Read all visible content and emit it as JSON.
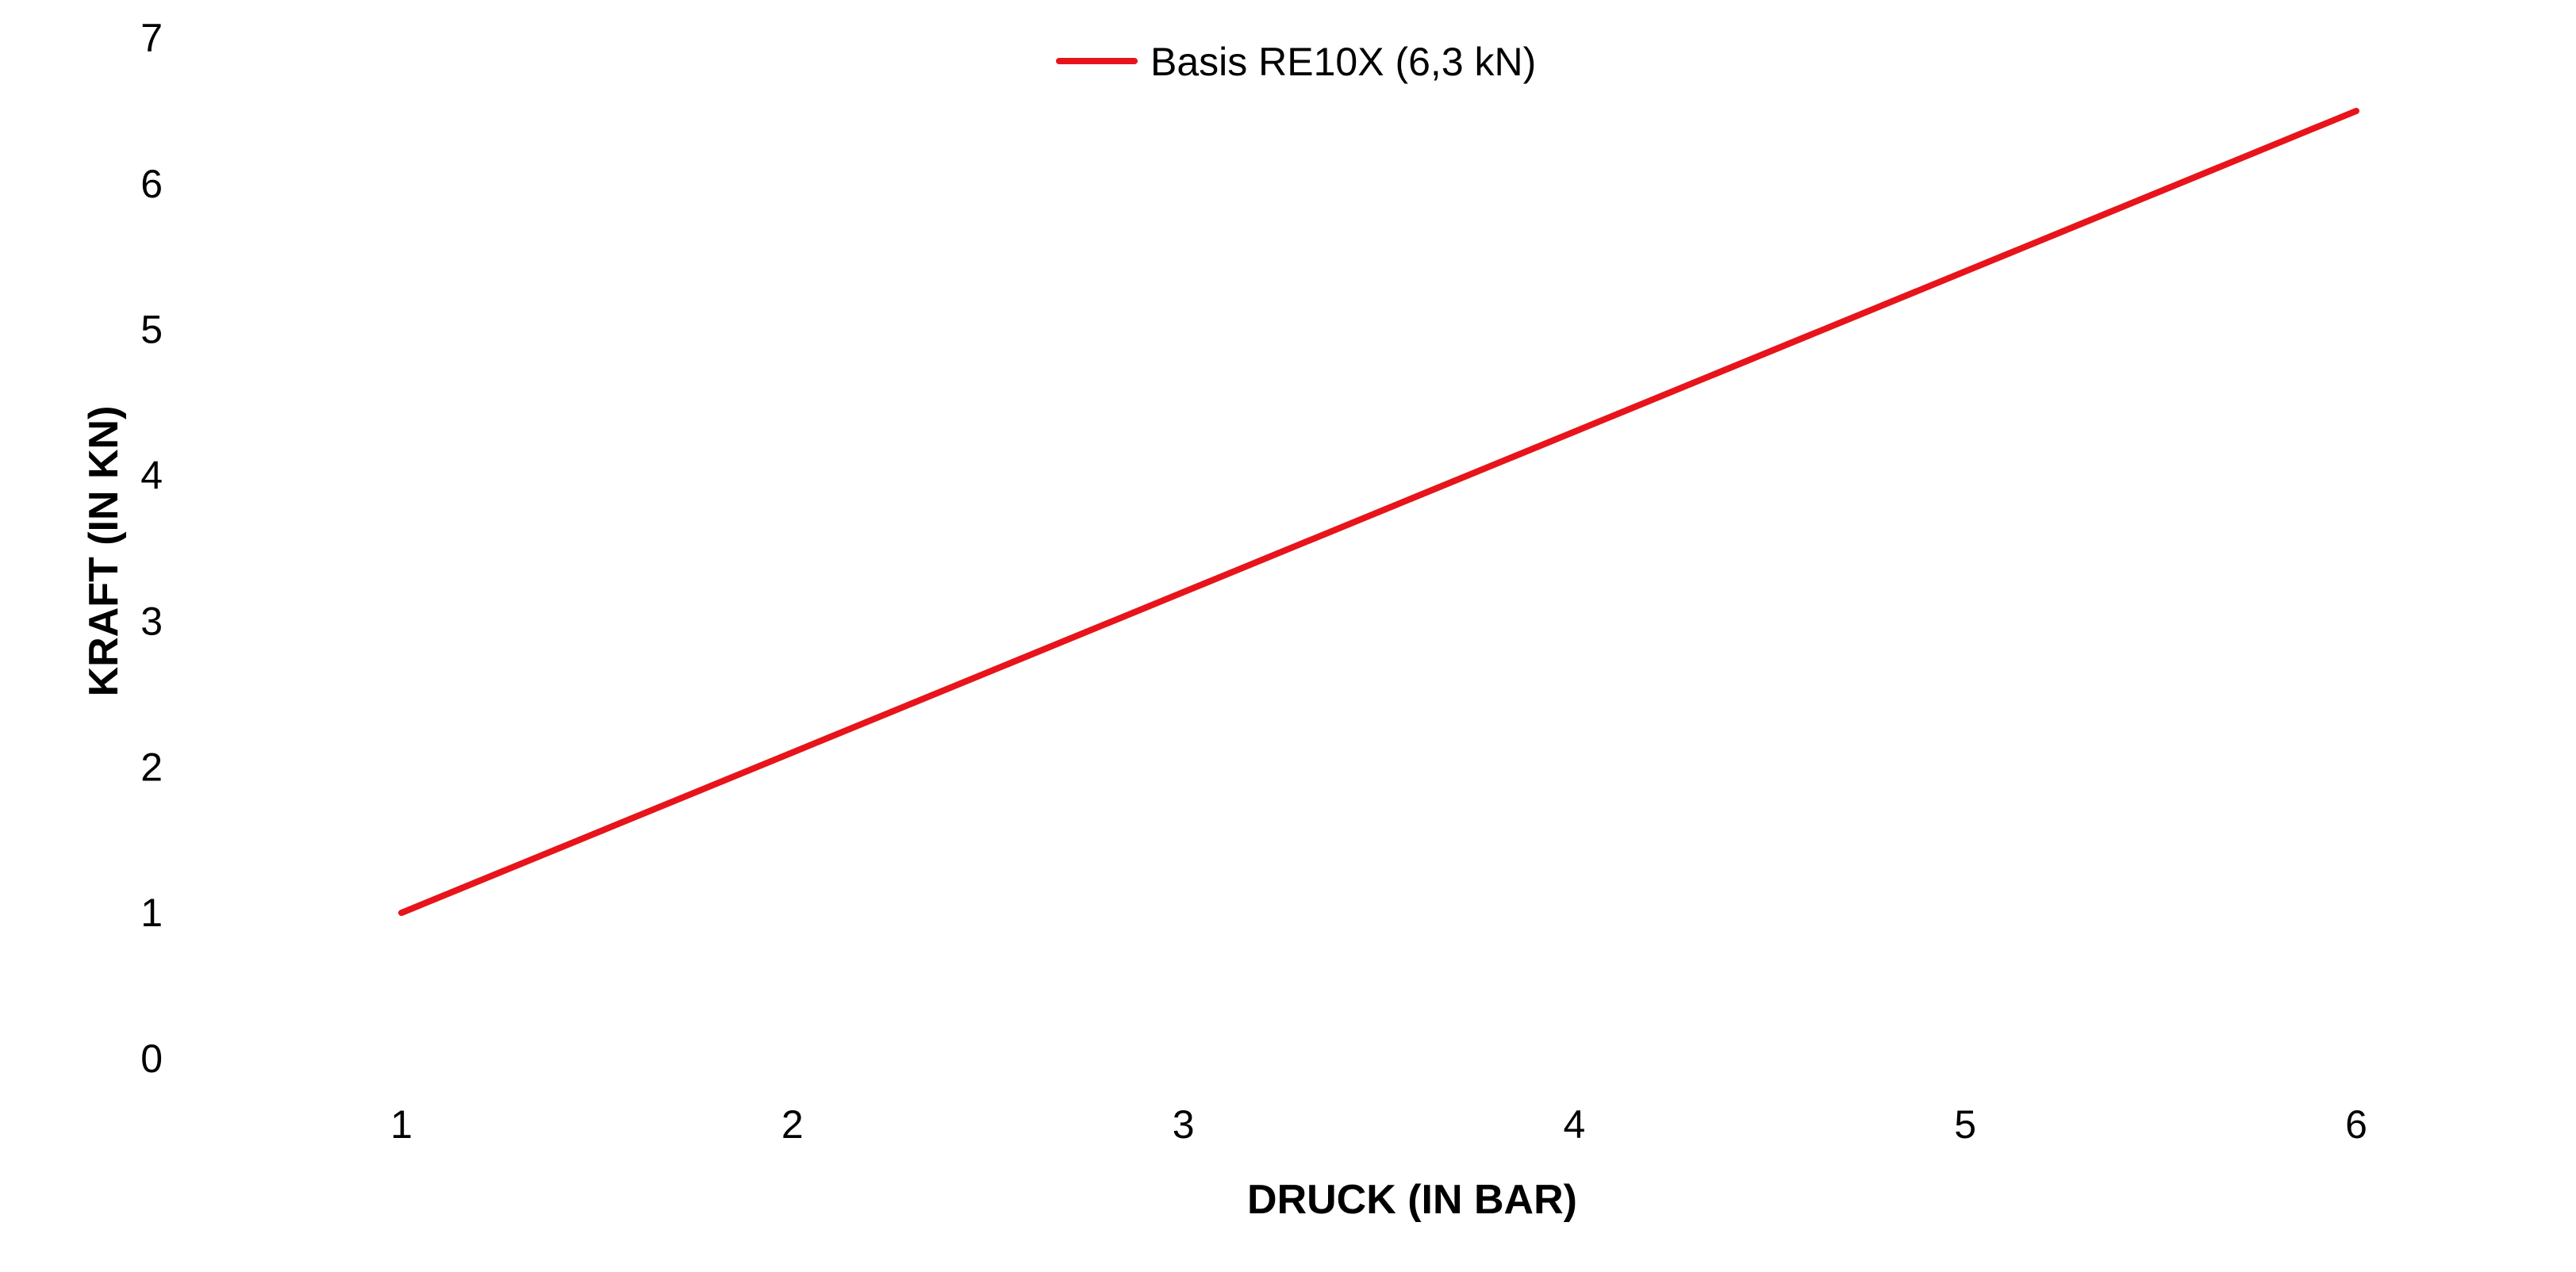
{
  "chart_data": {
    "type": "line",
    "xlabel": "DRUCK (IN BAR)",
    "ylabel": "KRAFT (IN KN)",
    "x": [
      1,
      2,
      3,
      4,
      5,
      6
    ],
    "x_ticks": [
      "1",
      "2",
      "3",
      "4",
      "5",
      "6"
    ],
    "y_ticks": [
      "0",
      "1",
      "2",
      "3",
      "4",
      "5",
      "6",
      "7"
    ],
    "ylim": [
      0,
      7
    ],
    "grid": false,
    "legend_position": "top-center",
    "series": [
      {
        "name": "Basis RE10X (6,3 kN)",
        "color": "#e8141b",
        "values": [
          1.0,
          2.1,
          3.2,
          4.3,
          5.4,
          6.5
        ]
      }
    ]
  }
}
